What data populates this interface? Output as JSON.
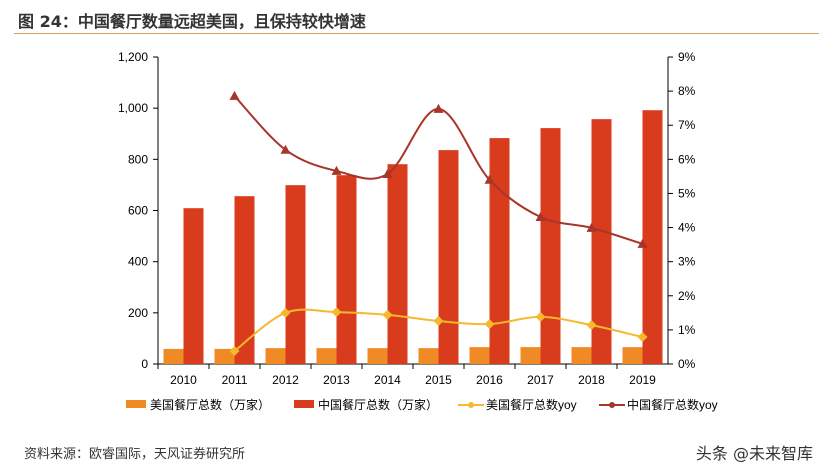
{
  "title": "图 24：中国餐厅数量远超美国，且保持较快增速",
  "source": "资料来源：欧睿国际，天风证券研究所",
  "watermark": "头条 @未来智库",
  "chart_data": {
    "type": "bar+line",
    "categories": [
      "2010",
      "2011",
      "2012",
      "2013",
      "2014",
      "2015",
      "2016",
      "2017",
      "2018",
      "2019"
    ],
    "y_left": {
      "range": [
        0,
        1200
      ],
      "ticks": [
        "0",
        "200",
        "400",
        "600",
        "800",
        "1,000",
        "1,200"
      ]
    },
    "y_right": {
      "range": [
        0,
        9
      ],
      "ticks": [
        "0%",
        "1%",
        "2%",
        "3%",
        "4%",
        "5%",
        "6%",
        "7%",
        "8%",
        "9%"
      ]
    },
    "series": [
      {
        "name": "美国餐厅总数（万家）",
        "type": "bar",
        "axis": "left",
        "color": "#f08a24",
        "values": [
          59,
          59,
          62,
          62,
          62,
          62,
          66,
          66,
          66,
          66
        ]
      },
      {
        "name": "中国餐厅总数（万家）",
        "type": "bar",
        "axis": "left",
        "color": "#d93c1c",
        "values": [
          609,
          656,
          699,
          738,
          781,
          836,
          883,
          922,
          957,
          992
        ]
      },
      {
        "name": "美国餐厅总数yoy",
        "type": "line",
        "axis": "right",
        "color": "#f5b82e",
        "marker": "diamond",
        "values": [
          null,
          0.38,
          1.5,
          1.52,
          1.44,
          1.26,
          1.17,
          1.38,
          1.14,
          0.79
        ]
      },
      {
        "name": "中国餐厅总数yoy",
        "type": "line",
        "axis": "right",
        "color": "#a8352a",
        "marker": "triangle",
        "values": [
          null,
          7.86,
          6.28,
          5.66,
          5.57,
          7.48,
          5.4,
          4.31,
          3.99,
          3.52
        ]
      }
    ],
    "legend": "bottom"
  }
}
